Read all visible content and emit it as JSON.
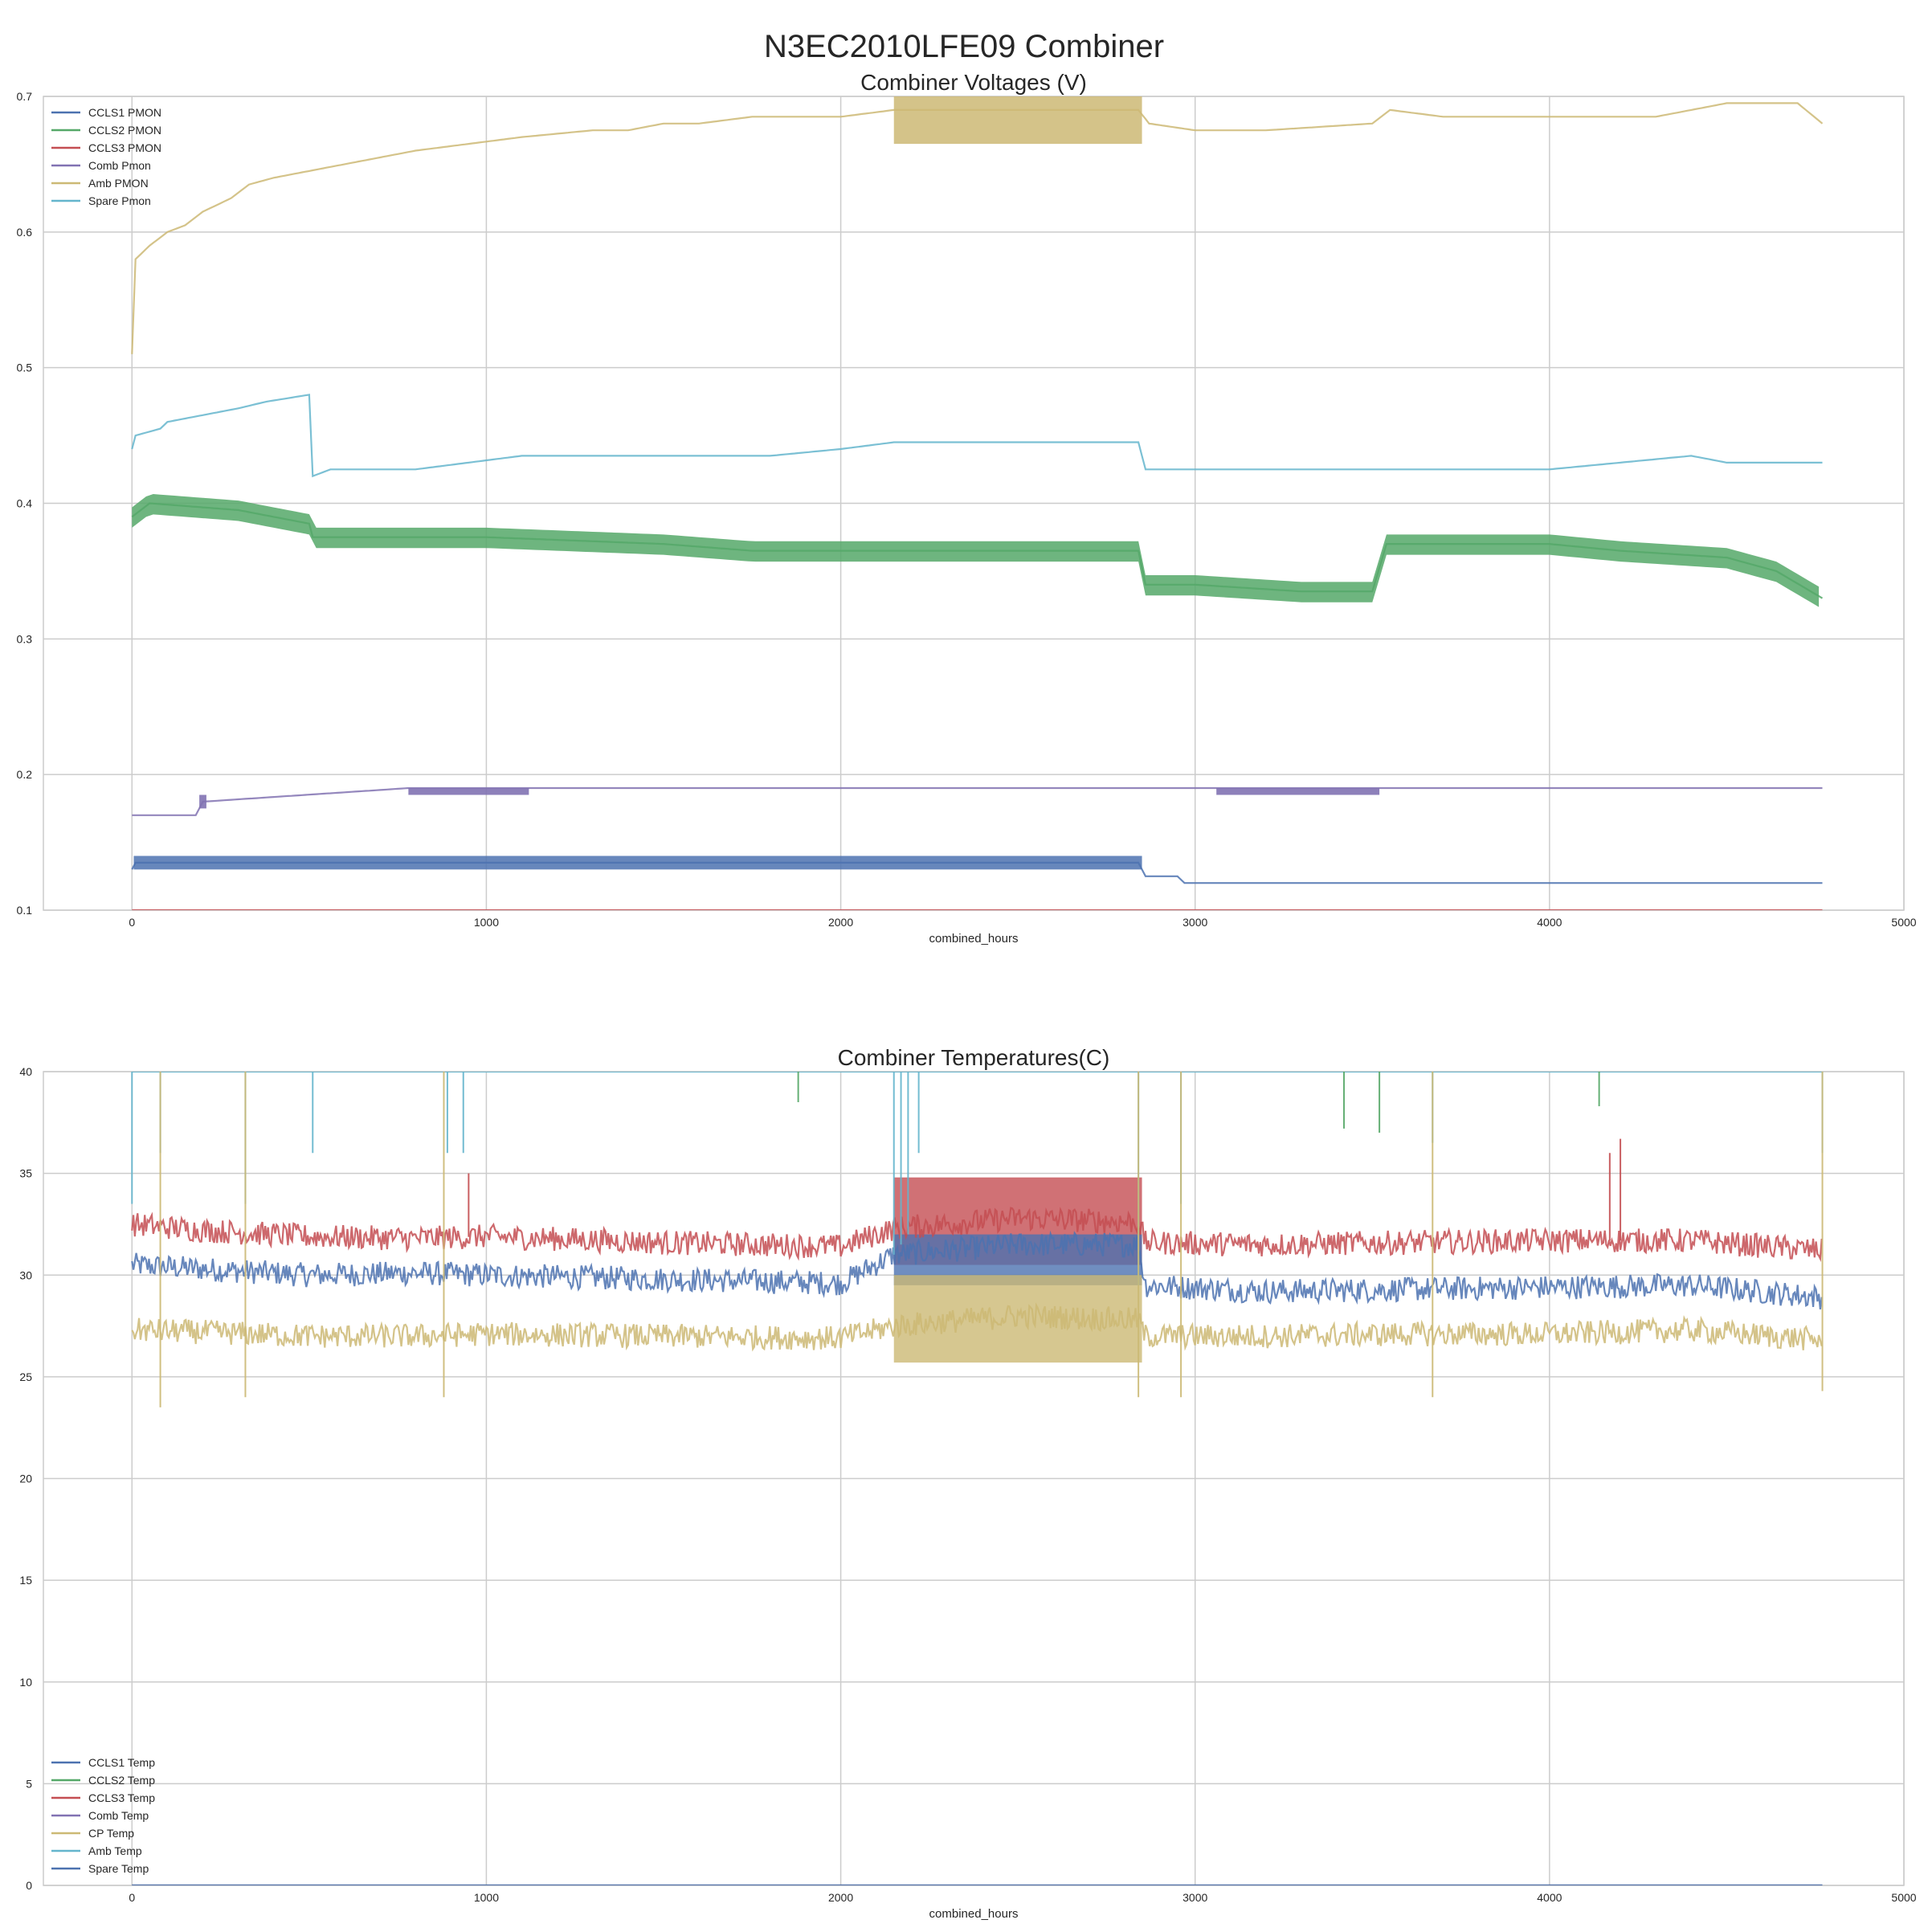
{
  "figure": {
    "suptitle": "N3EC2010LFE09 Combiner"
  },
  "chart_data": [
    {
      "type": "line",
      "title": "Combiner Voltages (V)",
      "xlabel": "combined_hours",
      "ylabel": "",
      "xlim": [
        -250,
        5000
      ],
      "ylim": [
        0.1,
        0.7
      ],
      "xticks": [
        0,
        1000,
        2000,
        3000,
        4000,
        5000
      ],
      "yticks": [
        0.1,
        0.2,
        0.3,
        0.4,
        0.5,
        0.6,
        0.7
      ],
      "grid": true,
      "legend_position": "upper-left",
      "series": [
        {
          "name": "CCLS1 PMON",
          "color": "#4c72b0",
          "x": [
            0,
            10,
            500,
            1000,
            1500,
            2000,
            2500,
            2840,
            2860,
            2950,
            2970,
            3500,
            4000,
            4500,
            4770
          ],
          "y": [
            0.13,
            0.135,
            0.135,
            0.135,
            0.135,
            0.135,
            0.135,
            0.135,
            0.125,
            0.125,
            0.12,
            0.12,
            0.12,
            0.12,
            0.12
          ],
          "band": [
            0.13,
            0.14
          ],
          "band_x": [
            5,
            2850
          ]
        },
        {
          "name": "CCLS2 PMON",
          "color": "#55a868",
          "x": [
            0,
            50,
            300,
            500,
            510,
            1000,
            1500,
            1750,
            2000,
            2500,
            2840,
            2860,
            3000,
            3300,
            3500,
            3540,
            4000,
            4200,
            4500,
            4640,
            4770
          ],
          "y": [
            0.39,
            0.4,
            0.395,
            0.385,
            0.375,
            0.375,
            0.37,
            0.365,
            0.365,
            0.365,
            0.365,
            0.34,
            0.34,
            0.335,
            0.335,
            0.37,
            0.37,
            0.365,
            0.36,
            0.35,
            0.33
          ],
          "band": [
            0.35,
            0.38
          ]
        },
        {
          "name": "CCLS3 PMON",
          "color": "#c44e52",
          "x": [
            0,
            4770
          ],
          "y": [
            0.1,
            0.1
          ]
        },
        {
          "name": "Comb Pmon",
          "color": "#8172b2",
          "x": [
            0,
            180,
            200,
            780,
            1000,
            1500,
            2000,
            2500,
            2840,
            3000,
            3500,
            4000,
            4500,
            4770
          ],
          "y": [
            0.17,
            0.17,
            0.18,
            0.19,
            0.19,
            0.19,
            0.19,
            0.19,
            0.19,
            0.19,
            0.19,
            0.19,
            0.19,
            0.19
          ],
          "band_segments": [
            [
              190,
              210,
              0.175,
              0.185
            ],
            [
              780,
              1120,
              0.185,
              0.19
            ],
            [
              3060,
              3520,
              0.185,
              0.19
            ]
          ]
        },
        {
          "name": "Amb PMON",
          "color": "#ccb974",
          "x": [
            0,
            10,
            50,
            100,
            150,
            200,
            280,
            330,
            400,
            500,
            600,
            700,
            800,
            950,
            1100,
            1300,
            1400,
            1500,
            1600,
            1750,
            1900,
            2000,
            2150,
            2300,
            2500,
            2700,
            2840,
            2870,
            3000,
            3200,
            3500,
            3550,
            3700,
            3900,
            4000,
            4300,
            4500,
            4700,
            4770
          ],
          "y": [
            0.51,
            0.58,
            0.59,
            0.6,
            0.605,
            0.615,
            0.625,
            0.635,
            0.64,
            0.645,
            0.65,
            0.655,
            0.66,
            0.665,
            0.67,
            0.675,
            0.675,
            0.68,
            0.68,
            0.685,
            0.685,
            0.685,
            0.69,
            0.69,
            0.69,
            0.69,
            0.69,
            0.68,
            0.675,
            0.675,
            0.68,
            0.69,
            0.685,
            0.685,
            0.685,
            0.685,
            0.695,
            0.695,
            0.68
          ],
          "band": [
            0.665,
            0.7
          ],
          "band_x": [
            2150,
            2850
          ]
        },
        {
          "name": "Spare Pmon",
          "color": "#64b5cd",
          "x": [
            0,
            10,
            80,
            100,
            200,
            300,
            380,
            500,
            510,
            560,
            600,
            800,
            1100,
            1500,
            1800,
            2000,
            2150,
            2500,
            2840,
            2860,
            3000,
            3500,
            3800,
            4000,
            4400,
            4500,
            4770
          ],
          "y": [
            0.44,
            0.45,
            0.455,
            0.46,
            0.465,
            0.47,
            0.475,
            0.48,
            0.42,
            0.425,
            0.425,
            0.425,
            0.435,
            0.435,
            0.435,
            0.44,
            0.445,
            0.445,
            0.445,
            0.425,
            0.425,
            0.425,
            0.425,
            0.425,
            0.435,
            0.43,
            0.43
          ]
        }
      ]
    },
    {
      "type": "line",
      "title": "Combiner Temperatures(C)",
      "xlabel": "combined_hours",
      "ylabel": "",
      "xlim": [
        -250,
        5000
      ],
      "ylim": [
        0,
        40
      ],
      "xticks": [
        0,
        1000,
        2000,
        3000,
        4000,
        5000
      ],
      "yticks": [
        0,
        5,
        10,
        15,
        20,
        25,
        30,
        35,
        40
      ],
      "grid": true,
      "legend_position": "lower-left",
      "series": [
        {
          "name": "CCLS1 Temp",
          "color": "#4c72b0",
          "x": [
            0,
            200,
            500,
            800,
            1000,
            1500,
            2000,
            2150,
            2500,
            2840,
            2860,
            3200,
            3600,
            4000,
            4400,
            4770
          ],
          "y": [
            30.5,
            30.3,
            30.0,
            30.1,
            30.0,
            29.8,
            29.6,
            31.0,
            31.5,
            31.5,
            29.5,
            29.2,
            29.3,
            29.4,
            29.5,
            28.9
          ]
        },
        {
          "name": "CCLS2 Temp",
          "color": "#55a868",
          "x": [
            0,
            4770
          ],
          "y": [
            0,
            0
          ]
        },
        {
          "name": "CCLS3 Temp",
          "color": "#c44e52",
          "x": [
            0,
            200,
            500,
            800,
            1000,
            1500,
            2000,
            2150,
            2500,
            2840,
            2860,
            3200,
            3600,
            4000,
            4400,
            4770
          ],
          "y": [
            32.5,
            32.2,
            31.9,
            31.8,
            31.9,
            31.6,
            31.4,
            32.3,
            32.8,
            32.6,
            31.6,
            31.5,
            31.6,
            31.7,
            31.7,
            31.2
          ]
        },
        {
          "name": "Comb Temp",
          "color": "#8172b2",
          "x": [
            0,
            4770
          ],
          "y": [
            0,
            0
          ]
        },
        {
          "name": "CP Temp",
          "color": "#ccb974",
          "x": [
            0,
            200,
            500,
            800,
            1000,
            1500,
            2000,
            2150,
            2500,
            2840,
            2860,
            3200,
            3600,
            4000,
            4400,
            4770
          ],
          "y": [
            27.3,
            27.2,
            27.0,
            27.0,
            27.1,
            27.0,
            26.9,
            27.5,
            28.0,
            27.8,
            27.0,
            27.0,
            27.1,
            27.1,
            27.3,
            26.8
          ]
        },
        {
          "name": "Amb Temp",
          "color": "#64b5cd",
          "x": [
            0,
            4770
          ],
          "y": [
            40,
            40
          ]
        },
        {
          "name": "Spare Temp",
          "color": "#4c72b0",
          "x": [
            0,
            4770
          ],
          "y": [
            0,
            0
          ]
        }
      ],
      "bands": [
        {
          "series": "CCLS3 Temp",
          "x": [
            2150,
            2850
          ],
          "y": [
            30.5,
            34.8
          ]
        },
        {
          "series": "CCLS1 Temp",
          "x": [
            2150,
            2850
          ],
          "y": [
            29.5,
            32.0
          ]
        },
        {
          "series": "CP Temp",
          "x": [
            2150,
            2850
          ],
          "y": [
            25.7,
            30.0
          ]
        }
      ],
      "spikes": [
        {
          "series": "Amb Temp",
          "x": [
            0,
            80,
            320,
            510,
            890,
            935,
            2150,
            2170,
            2190,
            2220,
            2840,
            2960,
            3670,
            4770
          ],
          "y_low": [
            33.5,
            36.0,
            33.5,
            36.0,
            36.0,
            36.0,
            31.0,
            31.5,
            32.0,
            36.0,
            29.5,
            33.5,
            36.5,
            36.0
          ]
        },
        {
          "series": "CCLS2 Temp",
          "x": [
            1880,
            3420,
            3520,
            4140
          ],
          "y_low": [
            38.5,
            37.2,
            37.0,
            38.3
          ]
        },
        {
          "series": "CCLS3 Temp",
          "x": [
            950,
            4170,
            4200
          ],
          "y_high": [
            35.0,
            36.0,
            36.7
          ]
        },
        {
          "series": "CP Temp",
          "x": [
            80,
            320,
            880,
            2840,
            2960,
            3670,
            4770
          ],
          "y_low": [
            23.5,
            24.0,
            24.0,
            24.0,
            24.0,
            24.0,
            24.3
          ]
        }
      ]
    }
  ]
}
